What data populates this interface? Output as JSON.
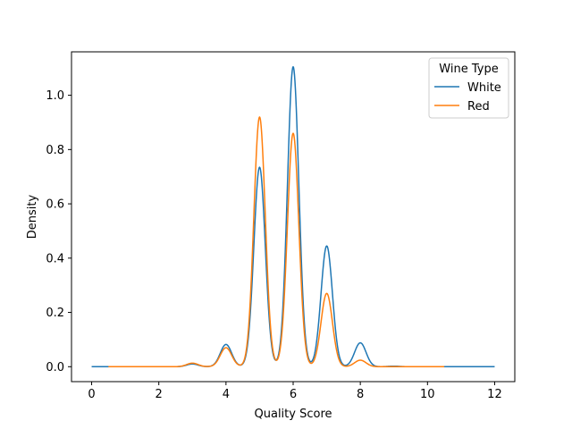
{
  "chart_data": {
    "type": "line",
    "xlabel": "Quality Score",
    "ylabel": "Density",
    "xlim": [
      -0.6,
      12.6
    ],
    "ylim": [
      -0.055,
      1.16
    ],
    "x_ticks": [
      0,
      2,
      4,
      6,
      8,
      10,
      12
    ],
    "y_ticks": [
      0.0,
      0.2,
      0.4,
      0.6,
      0.8,
      1.0
    ],
    "x_tick_labels": [
      "0",
      "2",
      "4",
      "6",
      "8",
      "10",
      "12"
    ],
    "y_tick_labels": [
      "0.0",
      "0.2",
      "0.4",
      "0.6",
      "0.8",
      "1.0"
    ],
    "grid": false,
    "legend": {
      "title": "Wine Type",
      "placement": "top-right"
    },
    "series": [
      {
        "name": "White",
        "color": "#1f77b4",
        "x_range": [
          0,
          12
        ],
        "peaks": [
          {
            "x": 3,
            "y": 0.01
          },
          {
            "x": 4,
            "y": 0.082
          },
          {
            "x": 5,
            "y": 0.735
          },
          {
            "x": 6,
            "y": 1.105
          },
          {
            "x": 7,
            "y": 0.445
          },
          {
            "x": 8,
            "y": 0.088
          },
          {
            "x": 9,
            "y": 0.002
          }
        ]
      },
      {
        "name": "Red",
        "color": "#ff7f0e",
        "x_range": [
          0.5,
          10.5
        ],
        "peaks": [
          {
            "x": 3,
            "y": 0.013
          },
          {
            "x": 4,
            "y": 0.07
          },
          {
            "x": 5,
            "y": 0.92
          },
          {
            "x": 6,
            "y": 0.86
          },
          {
            "x": 7,
            "y": 0.27
          },
          {
            "x": 8,
            "y": 0.024
          }
        ]
      }
    ]
  }
}
